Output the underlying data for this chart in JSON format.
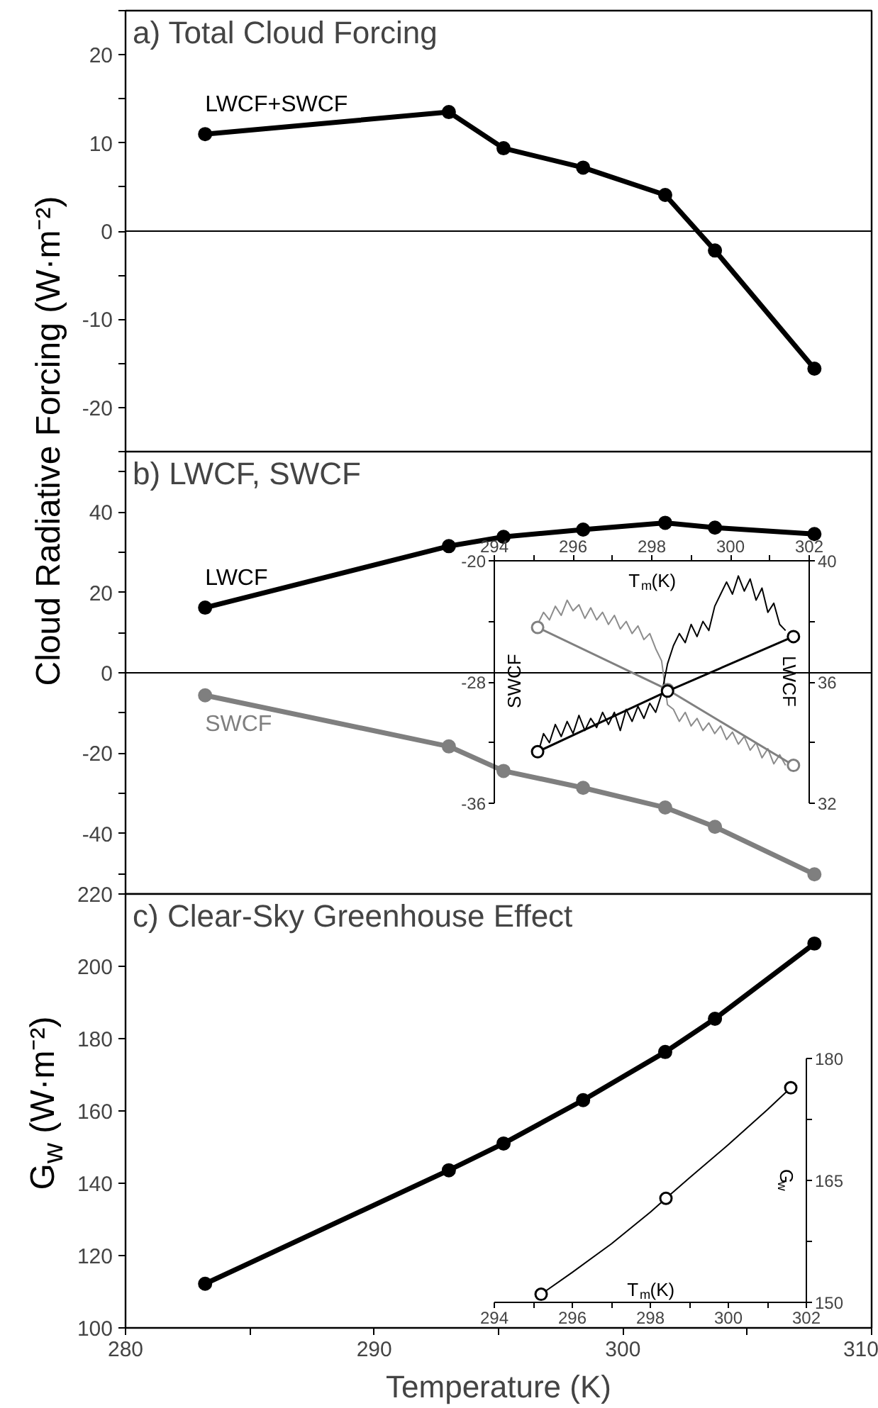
{
  "chart_data": [
    {
      "type": "line",
      "title": "a) Total Cloud Forcing",
      "ylabel": "Cloud Radiative Forcing (W·m⁻²)",
      "x": [
        283.2,
        293.0,
        295.2,
        298.4,
        301.7,
        303.7,
        307.7
      ],
      "series": [
        {
          "name": "LWCF+SWCF",
          "color": "#000000",
          "values": [
            11.0,
            13.5,
            9.4,
            7.2,
            4.1,
            -2.2,
            -15.6
          ]
        }
      ],
      "xlim": [
        280,
        310
      ],
      "ylim": [
        -25,
        25
      ],
      "yticks": [
        {
          "value": -25,
          "label": null
        },
        -20,
        {
          "value": -15,
          "label": null
        },
        -10,
        {
          "value": -5,
          "label": null
        },
        0,
        {
          "value": 5,
          "label": null
        },
        10,
        {
          "value": 15,
          "label": null
        },
        20,
        {
          "value": 25,
          "label": null
        }
      ],
      "tick_labels": "y",
      "marker": "circle",
      "ref_lines": [
        {
          "axis": "y",
          "value": 0,
          "color": "#000000"
        }
      ]
    },
    {
      "type": "line",
      "title": "b) LWCF, SWCF",
      "x": [
        283.2,
        293.0,
        295.2,
        298.4,
        301.7,
        303.7,
        307.7
      ],
      "series": [
        {
          "name": "LWCF",
          "color": "#000000",
          "values": [
            16.2,
            31.5,
            33.8,
            35.6,
            37.3,
            36.1,
            34.5
          ]
        },
        {
          "name": "SWCF",
          "color": "#7f7f7f",
          "values": [
            -5.6,
            -18.3,
            -24.4,
            -28.6,
            -33.5,
            -38.3,
            -50.1
          ]
        }
      ],
      "xlim": [
        280,
        310
      ],
      "ylim": [
        -55,
        55
      ],
      "yticks": [
        {
          "value": -50,
          "label": null
        },
        -40,
        {
          "value": -30,
          "label": null
        },
        -20,
        {
          "value": -10,
          "label": null
        },
        0,
        {
          "value": 10,
          "label": null
        },
        20,
        {
          "value": 30,
          "label": null
        },
        40,
        {
          "value": 50,
          "label": null
        }
      ],
      "tick_labels": "y",
      "marker": "circle",
      "ref_lines": [
        {
          "axis": "y",
          "value": 0,
          "color": "#000000"
        }
      ]
    },
    {
      "type": "line",
      "xlabel": "T$_{m}$(K)",
      "ylabel": "SWCF",
      "y2label": "LWCF",
      "series": [
        {
          "color": "#8c8c8c",
          "marker": "none",
          "x": [
            295.1,
            295.25,
            295.4,
            295.55,
            295.7,
            295.85,
            296.0,
            296.15,
            296.3,
            296.45,
            296.6,
            296.75,
            296.9,
            297.05,
            297.2,
            297.35,
            297.5,
            297.65,
            297.8,
            297.95,
            298.1,
            298.25,
            298.4,
            298.55,
            298.7,
            298.85,
            299.0,
            299.15,
            299.3,
            299.45,
            299.6,
            299.75,
            299.9,
            300.05,
            300.2,
            300.35,
            300.5,
            300.65,
            300.8,
            300.95,
            301.1,
            301.25,
            301.4
          ],
          "values": [
            -24.2,
            -23.4,
            -23.9,
            -23.0,
            -23.6,
            -22.6,
            -23.3,
            -22.9,
            -23.8,
            -23.1,
            -23.9,
            -23.4,
            -24.2,
            -23.6,
            -24.5,
            -24.0,
            -24.8,
            -24.3,
            -25.2,
            -24.8,
            -25.8,
            -26.6,
            -29.5,
            -29.8,
            -30.6,
            -30.0,
            -30.9,
            -30.4,
            -31.2,
            -30.7,
            -31.4,
            -30.9,
            -31.8,
            -31.3,
            -32.1,
            -31.6,
            -32.5,
            -32.0,
            -33.0,
            -32.4,
            -33.4,
            -32.8,
            -33.5
          ]
        },
        {
          "color": "#000000",
          "marker": "none",
          "axis": "y2",
          "x": [
            295.1,
            295.25,
            295.4,
            295.55,
            295.7,
            295.85,
            296.0,
            296.15,
            296.3,
            296.45,
            296.6,
            296.75,
            296.9,
            297.05,
            297.2,
            297.35,
            297.5,
            297.65,
            297.8,
            297.95,
            298.1,
            298.25,
            298.4,
            298.55,
            298.7,
            298.85,
            299.0,
            299.15,
            299.3,
            299.45,
            299.6,
            299.75,
            299.9,
            300.05,
            300.2,
            300.35,
            300.5,
            300.65,
            300.8,
            300.95,
            301.1,
            301.25,
            301.4
          ],
          "values": [
            33.6,
            34.3,
            34.0,
            34.6,
            34.2,
            34.7,
            34.3,
            34.9,
            34.4,
            34.8,
            34.5,
            35.0,
            34.6,
            35.0,
            34.4,
            35.1,
            34.7,
            35.2,
            34.8,
            35.3,
            35.0,
            35.6,
            36.6,
            37.2,
            37.6,
            37.3,
            37.9,
            37.5,
            38.0,
            37.7,
            38.5,
            38.9,
            39.3,
            38.9,
            39.5,
            39.0,
            39.4,
            38.7,
            39.1,
            38.3,
            38.6,
            37.9,
            37.7
          ]
        },
        {
          "color": "#808080",
          "marker": "circle",
          "x": [
            295.1,
            298.4,
            301.6
          ],
          "values": [
            -24.4,
            -28.5,
            -33.5
          ]
        },
        {
          "color": "#000000",
          "marker": "circle",
          "axis": "y2",
          "x": [
            295.1,
            298.4,
            301.6
          ],
          "values": [
            33.7,
            35.7,
            37.5
          ]
        }
      ],
      "xlim": [
        294,
        302
      ],
      "xticks": [
        294,
        {
          "value": 295,
          "label": null
        },
        296,
        {
          "value": 297,
          "label": null
        },
        298,
        {
          "value": 299,
          "label": null
        },
        300,
        {
          "value": 301,
          "label": null
        },
        302
      ],
      "ylim": [
        -36,
        -20
      ],
      "yticks": [
        -36,
        {
          "value": -32,
          "label": null
        },
        -28,
        {
          "value": -24,
          "label": null
        },
        -20
      ],
      "y2lim": [
        32,
        40
      ],
      "y2ticks": [
        32,
        {
          "value": 34,
          "label": null
        },
        36,
        {
          "value": 38,
          "label": null
        },
        40
      ]
    },
    {
      "type": "line",
      "title": "c) Clear-Sky Greenhouse Effect",
      "xlabel": "Temperature (K)",
      "ylabel": "G$_{w}$ (W·m⁻²)",
      "x": [
        283.2,
        293.0,
        295.2,
        298.4,
        301.7,
        303.7,
        307.7
      ],
      "series": [
        {
          "color": "#000000",
          "values": [
            112.2,
            143.6,
            151.0,
            163.0,
            176.3,
            185.5,
            206.3
          ]
        }
      ],
      "xlim": [
        280,
        310
      ],
      "xticks": [
        280,
        {
          "value": 285,
          "label": null
        },
        290,
        {
          "value": 295,
          "label": null
        },
        300,
        {
          "value": 305,
          "label": null
        },
        310
      ],
      "ylim": [
        100,
        220
      ],
      "yticks": [
        100,
        120,
        140,
        160,
        180,
        200,
        220
      ],
      "marker": "circle"
    },
    {
      "type": "line",
      "xlabel": "T$_{m}$(K)",
      "y2label": "G$_{w}$",
      "series": [
        {
          "color": "#000000",
          "marker": "none",
          "axis": "y2",
          "x": [
            295.2,
            296.0,
            297.0,
            298.0,
            298.4,
            299.0,
            300.0,
            301.0,
            301.6
          ],
          "values": [
            151.0,
            153.7,
            157.2,
            161.1,
            162.8,
            165.3,
            169.4,
            173.7,
            176.4
          ]
        },
        {
          "type": "scatter",
          "color": "#000000",
          "marker": "circle",
          "axis": "y2",
          "x": [
            295.2,
            298.4,
            301.6
          ],
          "values": [
            151.0,
            162.8,
            176.4
          ]
        }
      ],
      "xlim": [
        294,
        302
      ],
      "xticks": [
        294,
        {
          "value": 295,
          "label": null
        },
        296,
        {
          "value": 297,
          "label": null
        },
        298,
        {
          "value": 299,
          "label": null
        },
        300,
        {
          "value": 301,
          "label": null
        },
        302
      ],
      "y2lim": [
        150,
        180
      ],
      "y2ticks": [
        150,
        {
          "value": 157.5,
          "label": null
        },
        165,
        {
          "value": 172.5,
          "label": null
        },
        180
      ]
    }
  ]
}
